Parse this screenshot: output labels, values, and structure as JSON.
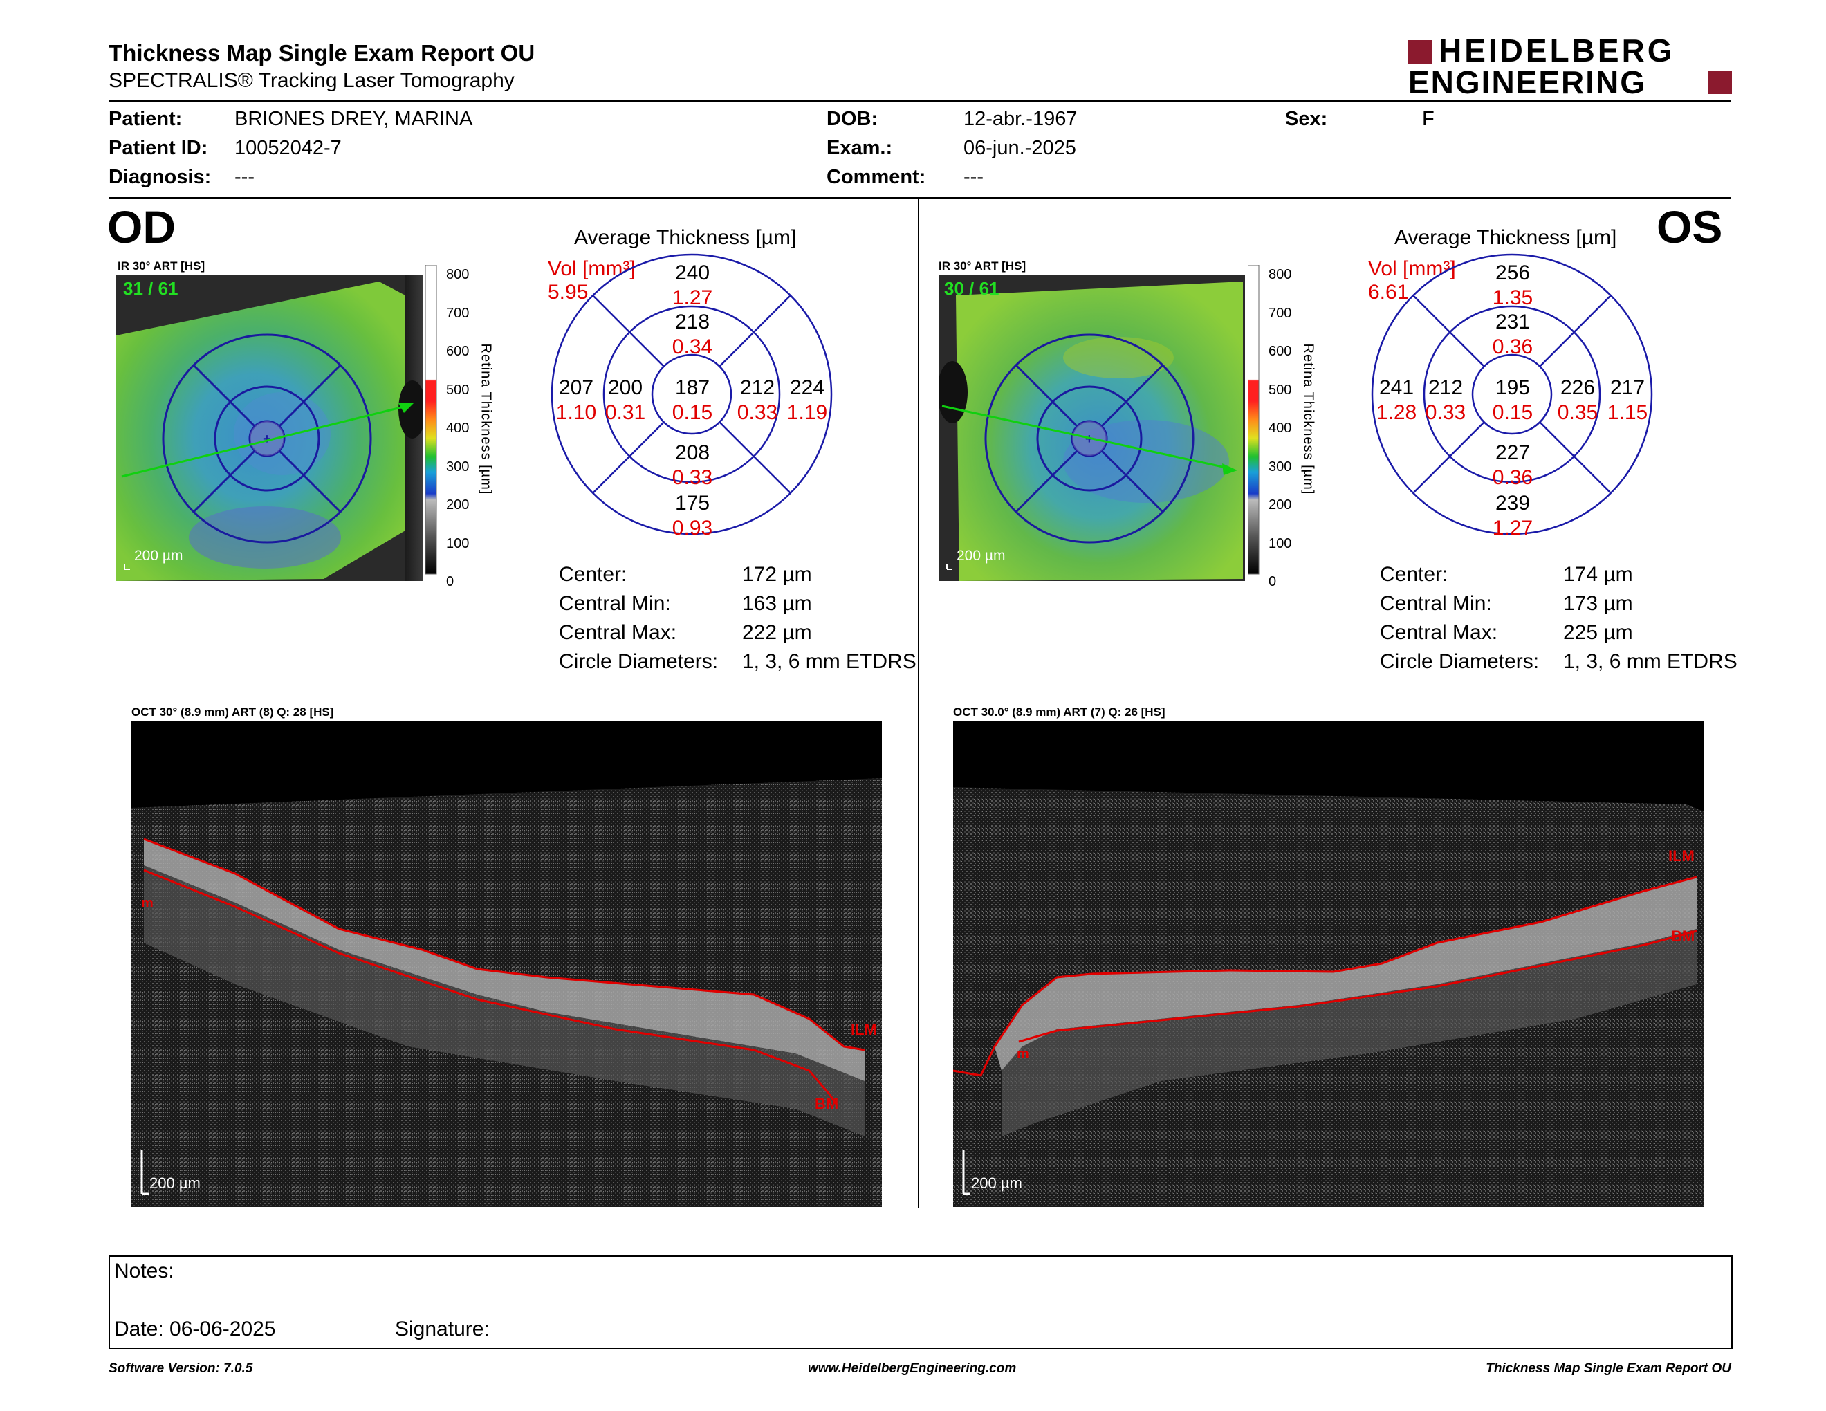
{
  "header": {
    "title": "Thickness Map Single Exam Report OU",
    "subtitle": "SPECTRALIS® Tracking Laser Tomography",
    "logo_line1": "HEIDELBERG",
    "logo_line2": "ENGINEERING"
  },
  "patient": {
    "patient_label": "Patient:",
    "patient_value": "BRIONES DREY, MARINA",
    "id_label": "Patient ID:",
    "id_value": "10052042-7",
    "diagnosis_label": "Diagnosis:",
    "diagnosis_value": "---",
    "dob_label": "DOB:",
    "dob_value": "12-abr.-1967",
    "exam_label": "Exam.:",
    "exam_value": "06-jun.-2025",
    "comment_label": "Comment:",
    "comment_value": "---",
    "sex_label": "Sex:",
    "sex_value": "F"
  },
  "od": {
    "eye_label": "OD",
    "ir_label": "IR 30° ART [HS]",
    "frame_counter": "31 / 61",
    "scale_label": "200 µm",
    "avg_title": "Average Thickness [µm]",
    "vol_label": "Vol [mm³]",
    "vol_value": "5.95",
    "grid": {
      "center_t": "187",
      "center_v": "0.15",
      "sup_in_t": "218",
      "sup_in_v": "0.34",
      "sup_out_t": "240",
      "sup_out_v": "1.27",
      "inf_in_t": "208",
      "inf_in_v": "0.33",
      "inf_out_t": "175",
      "inf_out_v": "0.93",
      "left_in_t": "200",
      "left_in_v": "0.31",
      "left_out_t": "207",
      "left_out_v": "1.10",
      "right_in_t": "212",
      "right_in_v": "0.33",
      "right_out_t": "224",
      "right_out_v": "1.19"
    },
    "stats": {
      "center_label": "Center:",
      "center_value": "172 µm",
      "min_label": "Central Min:",
      "min_value": "163 µm",
      "max_label": "Central Max:",
      "max_value": "222 µm",
      "diam_label": "Circle Diameters:",
      "diam_value": "1, 3, 6 mm ETDRS"
    },
    "oct_label": "OCT 30° (8.9 mm) ART (8) Q: 28 [HS]",
    "oct_scale": "200 µm",
    "layer_top": "ILM",
    "layer_bottom": "BM",
    "layer_side": "m"
  },
  "os": {
    "eye_label": "OS",
    "ir_label": "IR 30° ART [HS]",
    "frame_counter": "30 / 61",
    "scale_label": "200 µm",
    "avg_title": "Average Thickness [µm]",
    "vol_label": "Vol [mm³]",
    "vol_value": "6.61",
    "grid": {
      "center_t": "195",
      "center_v": "0.15",
      "sup_in_t": "231",
      "sup_in_v": "0.36",
      "sup_out_t": "256",
      "sup_out_v": "1.35",
      "inf_in_t": "227",
      "inf_in_v": "0.36",
      "inf_out_t": "239",
      "inf_out_v": "1.27",
      "left_in_t": "212",
      "left_in_v": "0.33",
      "left_out_t": "241",
      "left_out_v": "1.28",
      "right_in_t": "226",
      "right_in_v": "0.35",
      "right_out_t": "217",
      "right_out_v": "1.15"
    },
    "stats": {
      "center_label": "Center:",
      "center_value": "174 µm",
      "min_label": "Central Min:",
      "min_value": "173 µm",
      "max_label": "Central Max:",
      "max_value": "225 µm",
      "diam_label": "Circle Diameters:",
      "diam_value": "1, 3, 6 mm ETDRS"
    },
    "oct_label": "OCT 30.0° (8.9 mm) ART (7) Q: 26 [HS]",
    "oct_scale": "200 µm",
    "layer_top": "ILM",
    "layer_bottom": "BM",
    "layer_side": "m"
  },
  "colorbar": {
    "title": "Retina Thickness [µm]",
    "ticks": [
      "800",
      "700",
      "600",
      "500",
      "400",
      "300",
      "200",
      "100",
      "0"
    ]
  },
  "notes": {
    "notes_label": "Notes:",
    "date_label": "Date: 06-06-2025",
    "signature_label": "Signature:"
  },
  "footer": {
    "version": "Software Version: 7.0.5",
    "website": "www.HeidelbergEngineering.com",
    "report": "Thickness Map Single Exam Report OU"
  }
}
